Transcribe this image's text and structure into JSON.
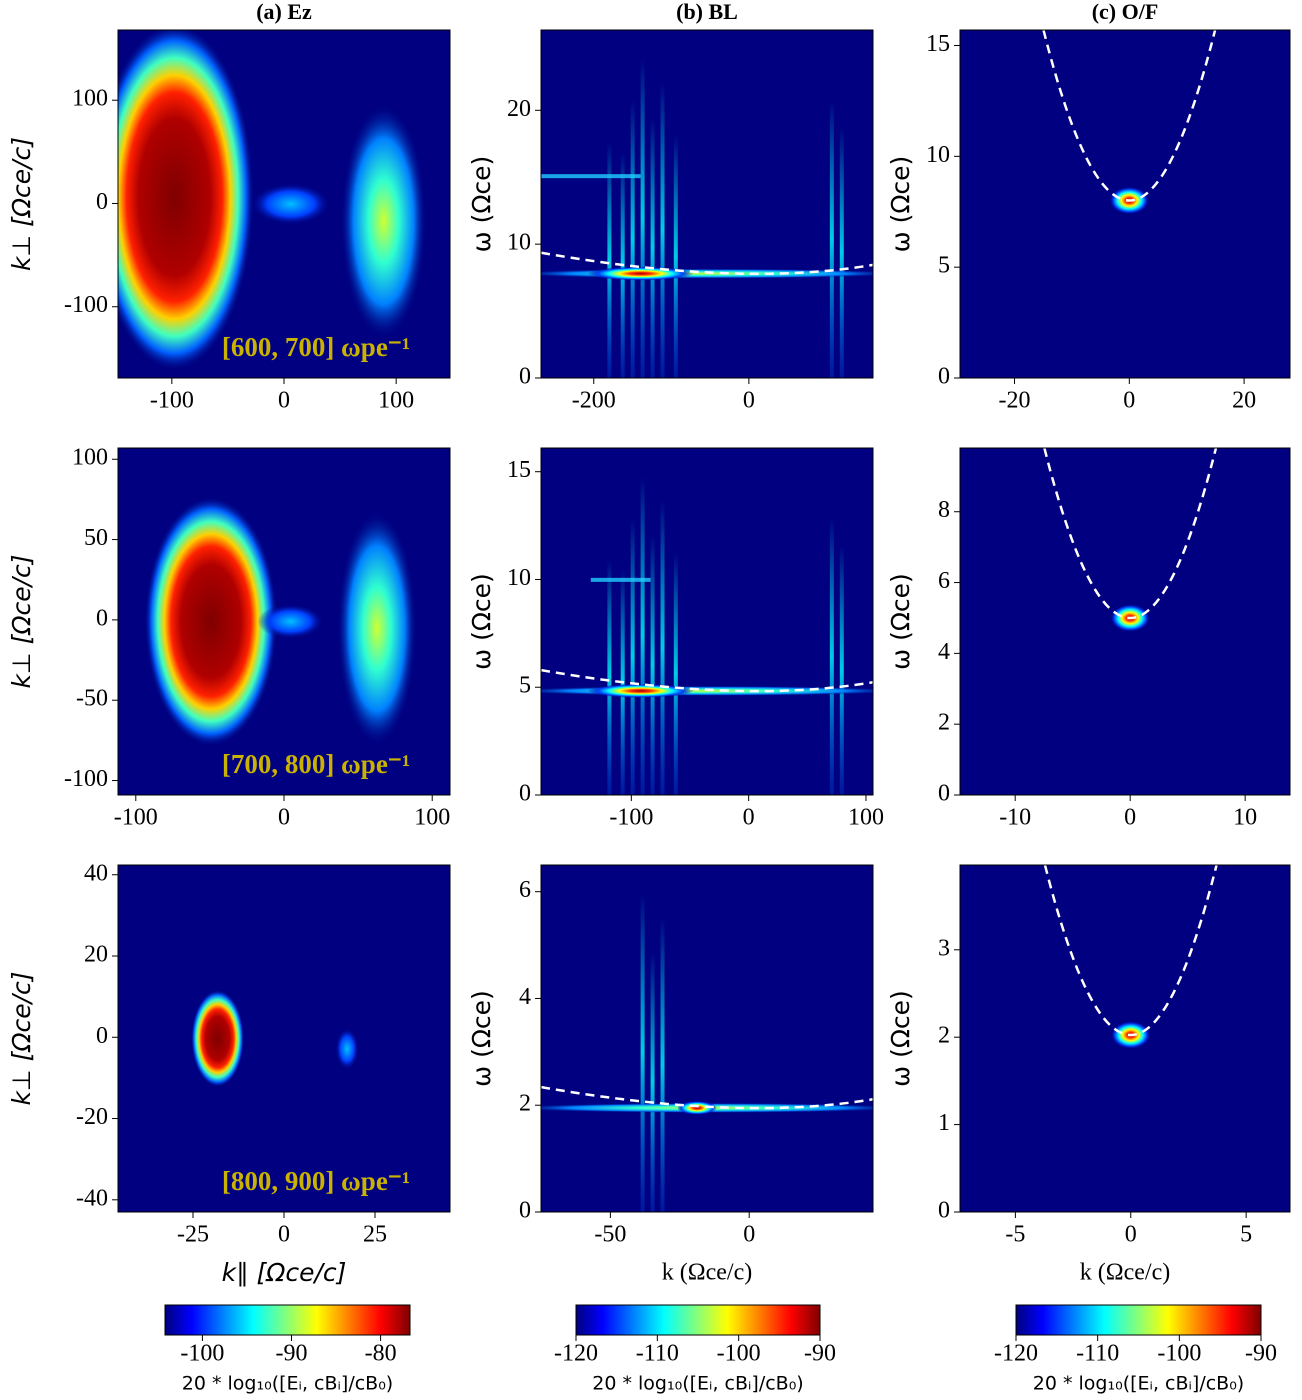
{
  "chart_data": [
    {
      "type": "heatmap",
      "title": "(a) Ez",
      "ylabel": "k⊥ [Ωce/c]",
      "annotation": "[600, 700] ωpe⁻¹",
      "xlim": [
        -148,
        148
      ],
      "ylim": [
        -169,
        168
      ],
      "xticks": [
        -100,
        0,
        100
      ],
      "yticks": [
        -100,
        0,
        100
      ]
    },
    {
      "type": "heatmap",
      "title": "(b) BL",
      "ylabel": "ω (Ωce)",
      "xlim": [
        -268,
        160
      ],
      "ylim": [
        0,
        26
      ],
      "xticks": [
        -200,
        0
      ],
      "yticks": [
        0,
        10,
        20
      ]
    },
    {
      "type": "heatmap",
      "title": "(c) O/F",
      "ylabel": "ω (Ωce)",
      "xlim": [
        -29.5,
        28
      ],
      "ylim": [
        0,
        15.7
      ],
      "xticks": [
        -20,
        0,
        20
      ],
      "yticks": [
        0,
        5,
        10,
        15
      ]
    },
    {
      "type": "heatmap",
      "ylabel": "k⊥ [Ωce/c]",
      "annotation": "[700, 800] ωpe⁻¹",
      "xlim": [
        -112,
        112
      ],
      "ylim": [
        -109,
        107
      ],
      "xticks": [
        -100,
        0,
        100
      ],
      "yticks": [
        -100,
        -50,
        0,
        50,
        100
      ]
    },
    {
      "type": "heatmap",
      "ylabel": "ω (Ωce)",
      "xlim": [
        -177,
        106
      ],
      "ylim": [
        0,
        16.1
      ],
      "xticks": [
        -100,
        0,
        100
      ],
      "yticks": [
        0,
        5,
        10,
        15
      ]
    },
    {
      "type": "heatmap",
      "ylabel": "ω (Ωce)",
      "xlim": [
        -14.8,
        13.9
      ],
      "ylim": [
        0,
        9.8
      ],
      "xticks": [
        -10,
        0,
        10
      ],
      "yticks": [
        0,
        2,
        4,
        6,
        8
      ]
    },
    {
      "type": "heatmap",
      "xlabel": "k∥ [Ωce/c]",
      "ylabel": "k⊥ [Ωce/c]",
      "annotation": "[800, 900] ωpe⁻¹",
      "xlim": [
        -45.6,
        45.6
      ],
      "ylim": [
        -43,
        42.4
      ],
      "xticks": [
        -25,
        0,
        25
      ],
      "yticks": [
        -40,
        -20,
        0,
        20,
        40
      ]
    },
    {
      "type": "heatmap",
      "xlabel": "k (Ωce/c)",
      "ylabel": "ω (Ωce)",
      "xlim": [
        -75,
        44.6
      ],
      "ylim": [
        0,
        6.5
      ],
      "xticks": [
        -50,
        0
      ],
      "yticks": [
        0,
        2,
        4,
        6
      ]
    },
    {
      "type": "heatmap",
      "xlabel": "k (Ωce/c)",
      "ylabel": "ω (Ωce)",
      "xlim": [
        -7.4,
        6.9
      ],
      "ylim": [
        0,
        3.97
      ],
      "xticks": [
        -5,
        0,
        5
      ],
      "yticks": [
        0,
        1,
        2,
        3
      ]
    }
  ],
  "colorbars": [
    {
      "label": "20 * log₁₀([Eᵢ, cBᵢ]/cB₀)",
      "lim": [
        -104.2,
        -76.7
      ],
      "ticks": [
        -100,
        -90,
        -80
      ]
    },
    {
      "label": "20 * log₁₀([Eᵢ, cBᵢ]/cB₀)",
      "lim": [
        -120,
        -90
      ],
      "ticks": [
        -120,
        -110,
        -100,
        -90
      ]
    },
    {
      "label": "20 * log₁₀([Eᵢ, cBᵢ]/cB₀)",
      "lim": [
        -120,
        -90
      ],
      "ticks": [
        -120,
        -110,
        -100,
        -90
      ]
    }
  ]
}
